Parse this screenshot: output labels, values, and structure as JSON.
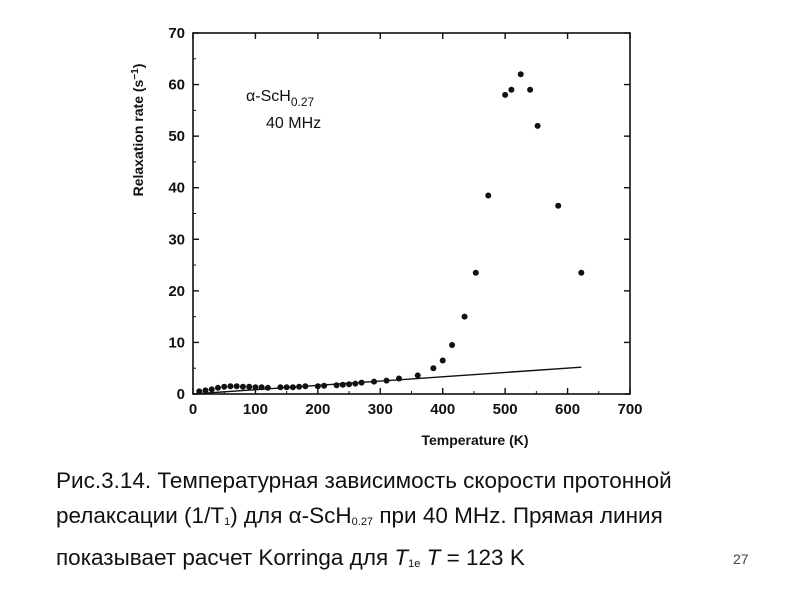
{
  "chart_data": {
    "type": "scatter",
    "xlabel": "Temperature  (K)",
    "ylabel": "Relaxation rate  (s",
    "ylabel_sup": "−1",
    "ylabel_close": ")",
    "xlim": [
      0,
      700
    ],
    "ylim": [
      0,
      70
    ],
    "xticks": [
      0,
      100,
      200,
      300,
      400,
      500,
      600,
      700
    ],
    "yticks": [
      0,
      10,
      20,
      30,
      40,
      50,
      60,
      70
    ],
    "grid": false,
    "annotation": {
      "sample_prefix": "α-ScH",
      "sample_sub": "0.27",
      "frequency": "40 MHz"
    },
    "points": [
      [
        10,
        0.5
      ],
      [
        20,
        0.7
      ],
      [
        30,
        0.9
      ],
      [
        40,
        1.2
      ],
      [
        50,
        1.4
      ],
      [
        60,
        1.5
      ],
      [
        70,
        1.5
      ],
      [
        80,
        1.4
      ],
      [
        90,
        1.4
      ],
      [
        100,
        1.3
      ],
      [
        110,
        1.3
      ],
      [
        120,
        1.2
      ],
      [
        140,
        1.3
      ],
      [
        150,
        1.3
      ],
      [
        160,
        1.3
      ],
      [
        170,
        1.4
      ],
      [
        180,
        1.5
      ],
      [
        200,
        1.5
      ],
      [
        210,
        1.6
      ],
      [
        230,
        1.7
      ],
      [
        240,
        1.8
      ],
      [
        250,
        1.9
      ],
      [
        260,
        2.0
      ],
      [
        270,
        2.2
      ],
      [
        290,
        2.4
      ],
      [
        310,
        2.6
      ],
      [
        330,
        3.0
      ],
      [
        360,
        3.6
      ],
      [
        385,
        5.0
      ],
      [
        400,
        6.5
      ],
      [
        415,
        9.5
      ],
      [
        435,
        15.0
      ],
      [
        453,
        23.5
      ],
      [
        473,
        38.5
      ],
      [
        500,
        58.0
      ],
      [
        510,
        59.0
      ],
      [
        525,
        62.0
      ],
      [
        540,
        59.0
      ],
      [
        552,
        52.0
      ],
      [
        585,
        36.5
      ],
      [
        622,
        23.5
      ]
    ],
    "line": {
      "name": "Korringa",
      "x": [
        0,
        622
      ],
      "y": [
        0,
        5.2
      ]
    }
  },
  "caption": {
    "line1": "Рис.3.14. Температурная зависимость скорости протонной",
    "line2_a": "релаксации (1/T",
    "line2_sub": "1",
    "line2_b": ") для α-ScH",
    "line2_sub2": "0.27",
    "line2_c": " при 40 MHz. Прямая линия",
    "line3_a": "показывает расчет Korringa для ",
    "line3_t1": "T",
    "line3_sub": "1e",
    "line3_t": " T",
    "line3_b": " = 123 K"
  },
  "page_number": "27"
}
